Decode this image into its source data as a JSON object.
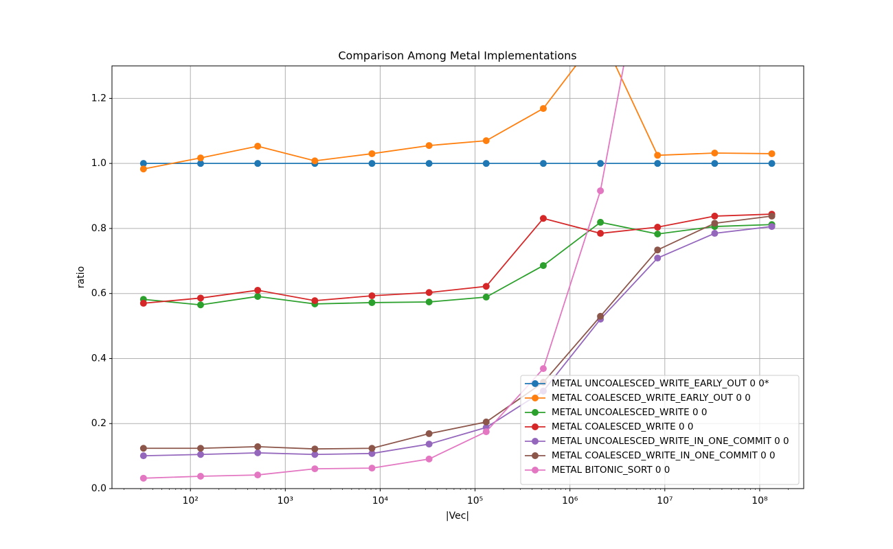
{
  "chart_data": {
    "type": "line",
    "title": "Comparison Among Metal Implementations",
    "x_label": "|Vec|",
    "y_label": "ratio",
    "x_scale": "log",
    "grid": true,
    "legend_position": "lower right",
    "x": [
      32,
      128,
      512,
      2048,
      8192,
      32768,
      131072,
      524288,
      2097152,
      8388608,
      33554432,
      134217728
    ],
    "xlim": [
      14.9,
      291000000
    ],
    "ylim": [
      0,
      1.3
    ],
    "xticks": [
      {
        "value": 100,
        "label": "10²"
      },
      {
        "value": 1000,
        "label": "10³"
      },
      {
        "value": 10000,
        "label": "10⁴"
      },
      {
        "value": 100000,
        "label": "10⁵"
      },
      {
        "value": 1000000,
        "label": "10⁶"
      },
      {
        "value": 10000000,
        "label": "10⁷"
      },
      {
        "value": 100000000,
        "label": "10⁸"
      }
    ],
    "yticks": [
      {
        "value": 0,
        "label": "0.0"
      },
      0.2,
      0.4,
      0.6,
      0.8,
      {
        "value": 1,
        "label": "1.0"
      },
      1.2
    ],
    "series": [
      {
        "name": "METAL UNCOALESCED_WRITE_EARLY_OUT 0 0*",
        "color": "#1f77b4",
        "values": [
          1.0,
          1.0,
          1.0,
          1.0,
          1.0,
          1.0,
          1.0,
          1.0,
          1.0,
          1.0,
          1.0,
          1.0
        ]
      },
      {
        "name": "METAL COALESCED_WRITE_EARLY_OUT 0 0",
        "color": "#ff7f0e",
        "values": [
          0.983,
          1.017,
          1.053,
          1.008,
          1.03,
          1.055,
          1.07,
          1.169,
          1.4,
          1.025,
          1.032,
          1.03
        ]
      },
      {
        "name": "METAL UNCOALESCED_WRITE 0 0",
        "color": "#2ca02c",
        "values": [
          0.582,
          0.565,
          0.591,
          0.568,
          0.572,
          0.574,
          0.589,
          0.686,
          0.819,
          0.783,
          0.806,
          0.812
        ]
      },
      {
        "name": "METAL COALESCED_WRITE 0 0",
        "color": "#d62728",
        "values": [
          0.57,
          0.586,
          0.61,
          0.578,
          0.593,
          0.603,
          0.622,
          0.831,
          0.785,
          0.804,
          0.838,
          0.844
        ]
      },
      {
        "name": "METAL UNCOALESCED_WRITE_IN_ONE_COMMIT 0 0",
        "color": "#9467bd",
        "values": [
          0.101,
          0.105,
          0.11,
          0.105,
          0.108,
          0.137,
          0.188,
          0.3,
          0.521,
          0.709,
          0.785,
          0.806
        ]
      },
      {
        "name": "METAL COALESCED_WRITE_IN_ONE_COMMIT 0 0",
        "color": "#8c564b",
        "values": [
          0.124,
          0.124,
          0.129,
          0.122,
          0.124,
          0.169,
          0.205,
          0.327,
          0.53,
          0.734,
          0.816,
          0.838
        ]
      },
      {
        "name": "METAL BITONIC_SORT 0 0",
        "color": "#e377c2",
        "values": [
          0.032,
          0.038,
          0.042,
          0.061,
          0.063,
          0.091,
          0.175,
          0.369,
          0.916,
          1.86,
          null,
          null
        ]
      }
    ]
  }
}
